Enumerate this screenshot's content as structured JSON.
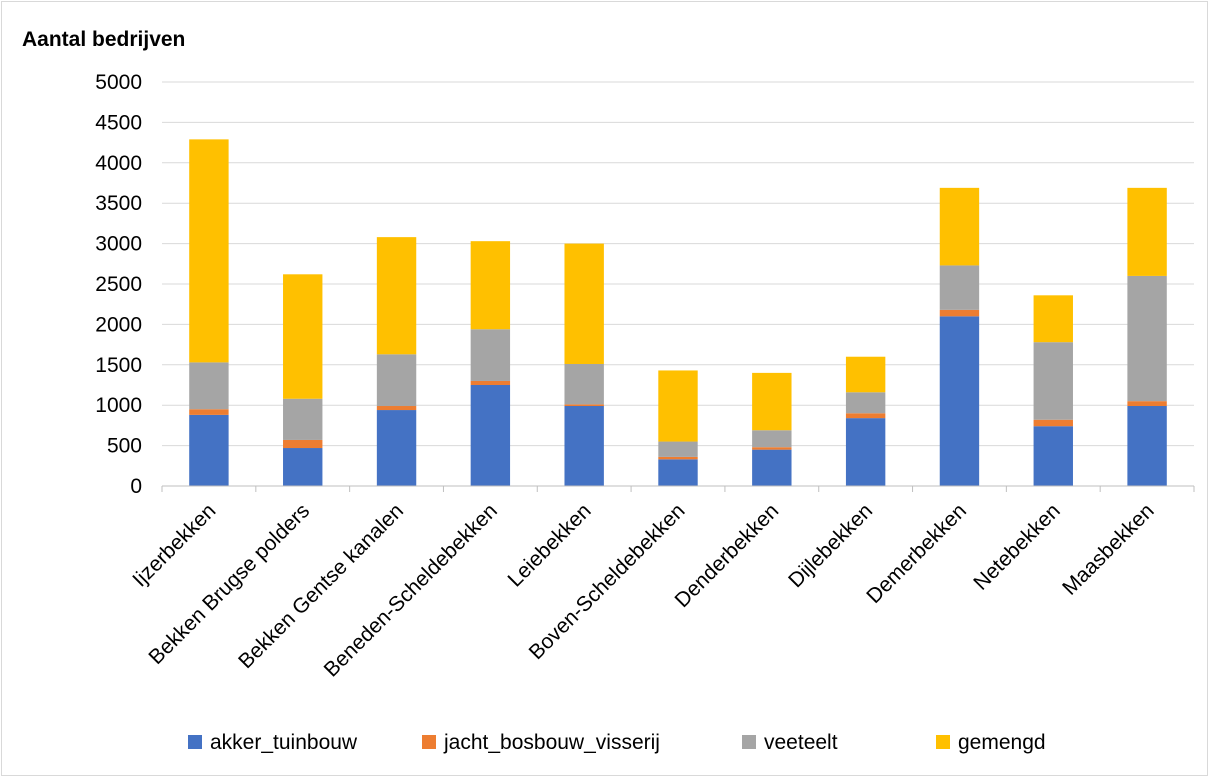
{
  "chart_data": {
    "type": "bar",
    "stacked": true,
    "ylabel": "Aantal bedrijven",
    "ylim": [
      0,
      5000
    ],
    "yticks": [
      0,
      500,
      1000,
      1500,
      2000,
      2500,
      3000,
      3500,
      4000,
      4500,
      5000
    ],
    "grid": true,
    "legend": "bottom",
    "categories": [
      "Ijzerbekken",
      "Bekken Brugse polders",
      "Bekken Gentse kanalen",
      "Beneden-Scheldebekken",
      "Leiebekken",
      "Boven-Scheldebekken",
      "Denderbekken",
      "Dijlebekken",
      "Demerbekken",
      "Netebekken",
      "Maasbekken"
    ],
    "series": [
      {
        "name": "akker_tuinbouw",
        "color": "#4472c4",
        "values": [
          880,
          470,
          940,
          1250,
          990,
          330,
          450,
          840,
          2100,
          740,
          990
        ]
      },
      {
        "name": "jacht_bosbouw_visserij",
        "color": "#ed7d31",
        "values": [
          70,
          100,
          50,
          50,
          20,
          30,
          30,
          60,
          80,
          80,
          60
        ]
      },
      {
        "name": "veeteelt",
        "color": "#a5a5a5",
        "values": [
          580,
          510,
          640,
          640,
          500,
          190,
          210,
          260,
          550,
          960,
          1550
        ]
      },
      {
        "name": "gemengd",
        "color": "#ffc000",
        "values": [
          2760,
          1540,
          1450,
          1090,
          1490,
          880,
          710,
          440,
          960,
          580,
          1090
        ]
      }
    ]
  }
}
